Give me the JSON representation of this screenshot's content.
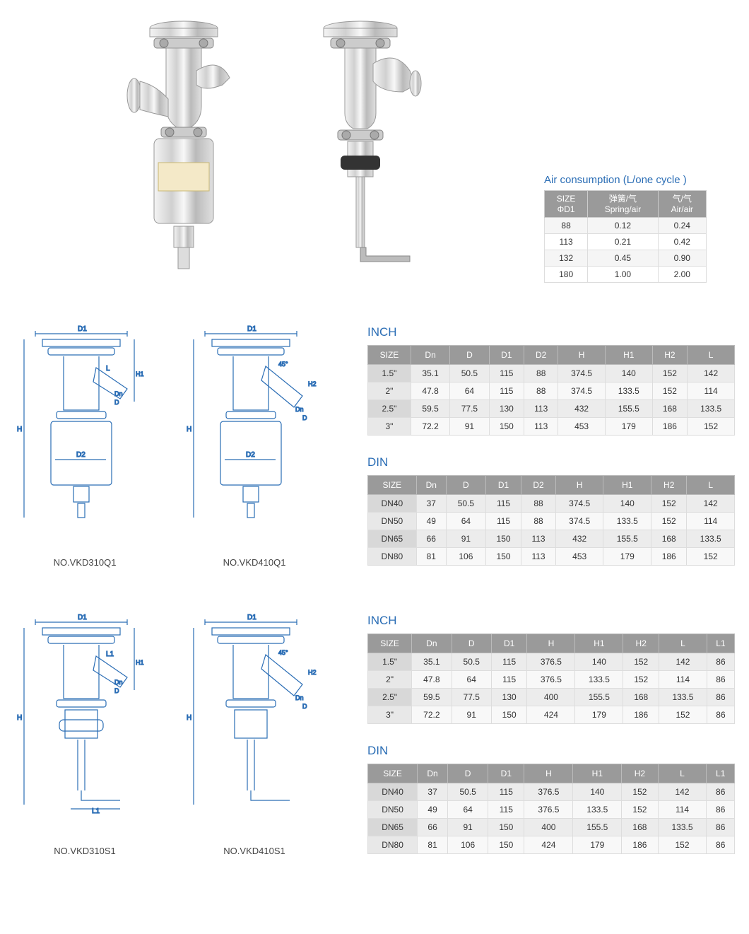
{
  "air": {
    "title": "Air consumption (L/one cycle )",
    "headers": {
      "size_line1": "SIZE",
      "size_line2": "ΦD1",
      "spring_line1": "弹簧/气",
      "spring_line2": "Spring/air",
      "air_line1": "气/气",
      "air_line2": "Air/air"
    },
    "rows": [
      {
        "size": "88",
        "spring": "0.12",
        "air": "0.24"
      },
      {
        "size": "113",
        "spring": "0.21",
        "air": "0.42"
      },
      {
        "size": "132",
        "spring": "0.45",
        "air": "0.90"
      },
      {
        "size": "180",
        "spring": "1.00",
        "air": "2.00"
      }
    ]
  },
  "diagrams": {
    "q1a": "NO.VKD310Q1",
    "q1b": "NO.VKD410Q1",
    "s1a": "NO.VKD310S1",
    "s1b": "NO.VKD410S1"
  },
  "inch_q": {
    "heading": "INCH",
    "cols": [
      "SIZE",
      "Dn",
      "D",
      "D1",
      "D2",
      "H",
      "H1",
      "H2",
      "L"
    ],
    "rows": [
      [
        "1.5\"",
        "35.1",
        "50.5",
        "115",
        "88",
        "374.5",
        "140",
        "152",
        "142"
      ],
      [
        "2\"",
        "47.8",
        "64",
        "115",
        "88",
        "374.5",
        "133.5",
        "152",
        "114"
      ],
      [
        "2.5\"",
        "59.5",
        "77.5",
        "130",
        "113",
        "432",
        "155.5",
        "168",
        "133.5"
      ],
      [
        "3\"",
        "72.2",
        "91",
        "150",
        "113",
        "453",
        "179",
        "186",
        "152"
      ]
    ]
  },
  "din_q": {
    "heading": "DIN",
    "cols": [
      "SIZE",
      "Dn",
      "D",
      "D1",
      "D2",
      "H",
      "H1",
      "H2",
      "L"
    ],
    "rows": [
      [
        "DN40",
        "37",
        "50.5",
        "115",
        "88",
        "374.5",
        "140",
        "152",
        "142"
      ],
      [
        "DN50",
        "49",
        "64",
        "115",
        "88",
        "374.5",
        "133.5",
        "152",
        "114"
      ],
      [
        "DN65",
        "66",
        "91",
        "150",
        "113",
        "432",
        "155.5",
        "168",
        "133.5"
      ],
      [
        "DN80",
        "81",
        "106",
        "150",
        "113",
        "453",
        "179",
        "186",
        "152"
      ]
    ]
  },
  "inch_s": {
    "heading": "INCH",
    "cols": [
      "SIZE",
      "Dn",
      "D",
      "D1",
      "H",
      "H1",
      "H2",
      "L",
      "L1"
    ],
    "rows": [
      [
        "1.5\"",
        "35.1",
        "50.5",
        "115",
        "376.5",
        "140",
        "152",
        "142",
        "86"
      ],
      [
        "2\"",
        "47.8",
        "64",
        "115",
        "376.5",
        "133.5",
        "152",
        "114",
        "86"
      ],
      [
        "2.5\"",
        "59.5",
        "77.5",
        "130",
        "400",
        "155.5",
        "168",
        "133.5",
        "86"
      ],
      [
        "3\"",
        "72.2",
        "91",
        "150",
        "424",
        "179",
        "186",
        "152",
        "86"
      ]
    ]
  },
  "din_s": {
    "heading": "DIN",
    "cols": [
      "SIZE",
      "Dn",
      "D",
      "D1",
      "H",
      "H1",
      "H2",
      "L",
      "L1"
    ],
    "rows": [
      [
        "DN40",
        "37",
        "50.5",
        "115",
        "376.5",
        "140",
        "152",
        "142",
        "86"
      ],
      [
        "DN50",
        "49",
        "64",
        "115",
        "376.5",
        "133.5",
        "152",
        "114",
        "86"
      ],
      [
        "DN65",
        "66",
        "91",
        "150",
        "400",
        "155.5",
        "168",
        "133.5",
        "86"
      ],
      [
        "DN80",
        "81",
        "106",
        "150",
        "424",
        "179",
        "186",
        "152",
        "86"
      ]
    ]
  },
  "colors": {
    "heading": "#2a6db5",
    "th_bg": "#9a9a9a",
    "metal_light": "#e8e8e8",
    "metal_mid": "#bcbcbc",
    "metal_dark": "#888"
  }
}
